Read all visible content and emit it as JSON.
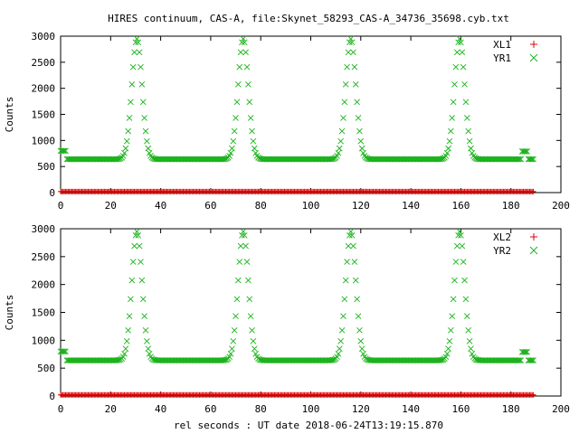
{
  "title": "HIRES continuum, CAS-A, file:Skynet_58293_CAS-A_34736_35698.cyb.txt",
  "xlabel": "rel seconds : UT date 2018-06-24T13:19:15.870",
  "colors": {
    "xl": "#e00000",
    "yr": "#19b219"
  },
  "chart_data": [
    {
      "type": "scatter",
      "ylabel": "Counts",
      "xlim": [
        0,
        200
      ],
      "ylim": [
        0,
        3000
      ],
      "xticks": [
        "0",
        "20",
        "40",
        "60",
        "80",
        "100",
        "120",
        "140",
        "160",
        "180",
        "200"
      ],
      "yticks": [
        "0",
        "500",
        "1000",
        "1500",
        "2000",
        "2500",
        "3000"
      ],
      "legend": "top-right",
      "series": [
        {
          "name": "XL1",
          "marker": "+",
          "x_range": [
            0,
            189
          ],
          "x_step": 0.5,
          "y": 20
        },
        {
          "name": "YR1",
          "marker": "x",
          "x_range": [
            0,
            189
          ],
          "x_step": 0.5,
          "plateau": [
            [
              0,
              2.5,
              800
            ],
            [
              2.5,
              184.5,
              640
            ],
            [
              182.5,
              187,
              790
            ],
            [
              187,
              189,
              640
            ]
          ],
          "peaks": [
            [
              30.5,
              2950
            ],
            [
              73,
              2950
            ],
            [
              116,
              2950
            ],
            [
              159.5,
              2950
            ]
          ]
        }
      ]
    },
    {
      "type": "scatter",
      "ylabel": "Counts",
      "xlim": [
        0,
        200
      ],
      "ylim": [
        0,
        3000
      ],
      "xticks": [
        "0",
        "20",
        "40",
        "60",
        "80",
        "100",
        "120",
        "140",
        "160",
        "180",
        "200"
      ],
      "yticks": [
        "0",
        "500",
        "1000",
        "1500",
        "2000",
        "2500",
        "3000"
      ],
      "legend": "top-right",
      "series": [
        {
          "name": "XL2",
          "marker": "+",
          "x_range": [
            0,
            189
          ],
          "x_step": 0.5,
          "y": 20
        },
        {
          "name": "YR2",
          "marker": "x",
          "x_range": [
            0,
            189
          ],
          "x_step": 0.5,
          "plateau": [
            [
              0,
              2.5,
              800
            ],
            [
              2.5,
              184.5,
              640
            ],
            [
              182.5,
              187,
              790
            ],
            [
              187,
              189,
              640
            ]
          ],
          "peaks": [
            [
              30.5,
              2950
            ],
            [
              73,
              2950
            ],
            [
              116,
              2950
            ],
            [
              159.5,
              2950
            ]
          ]
        }
      ]
    }
  ]
}
